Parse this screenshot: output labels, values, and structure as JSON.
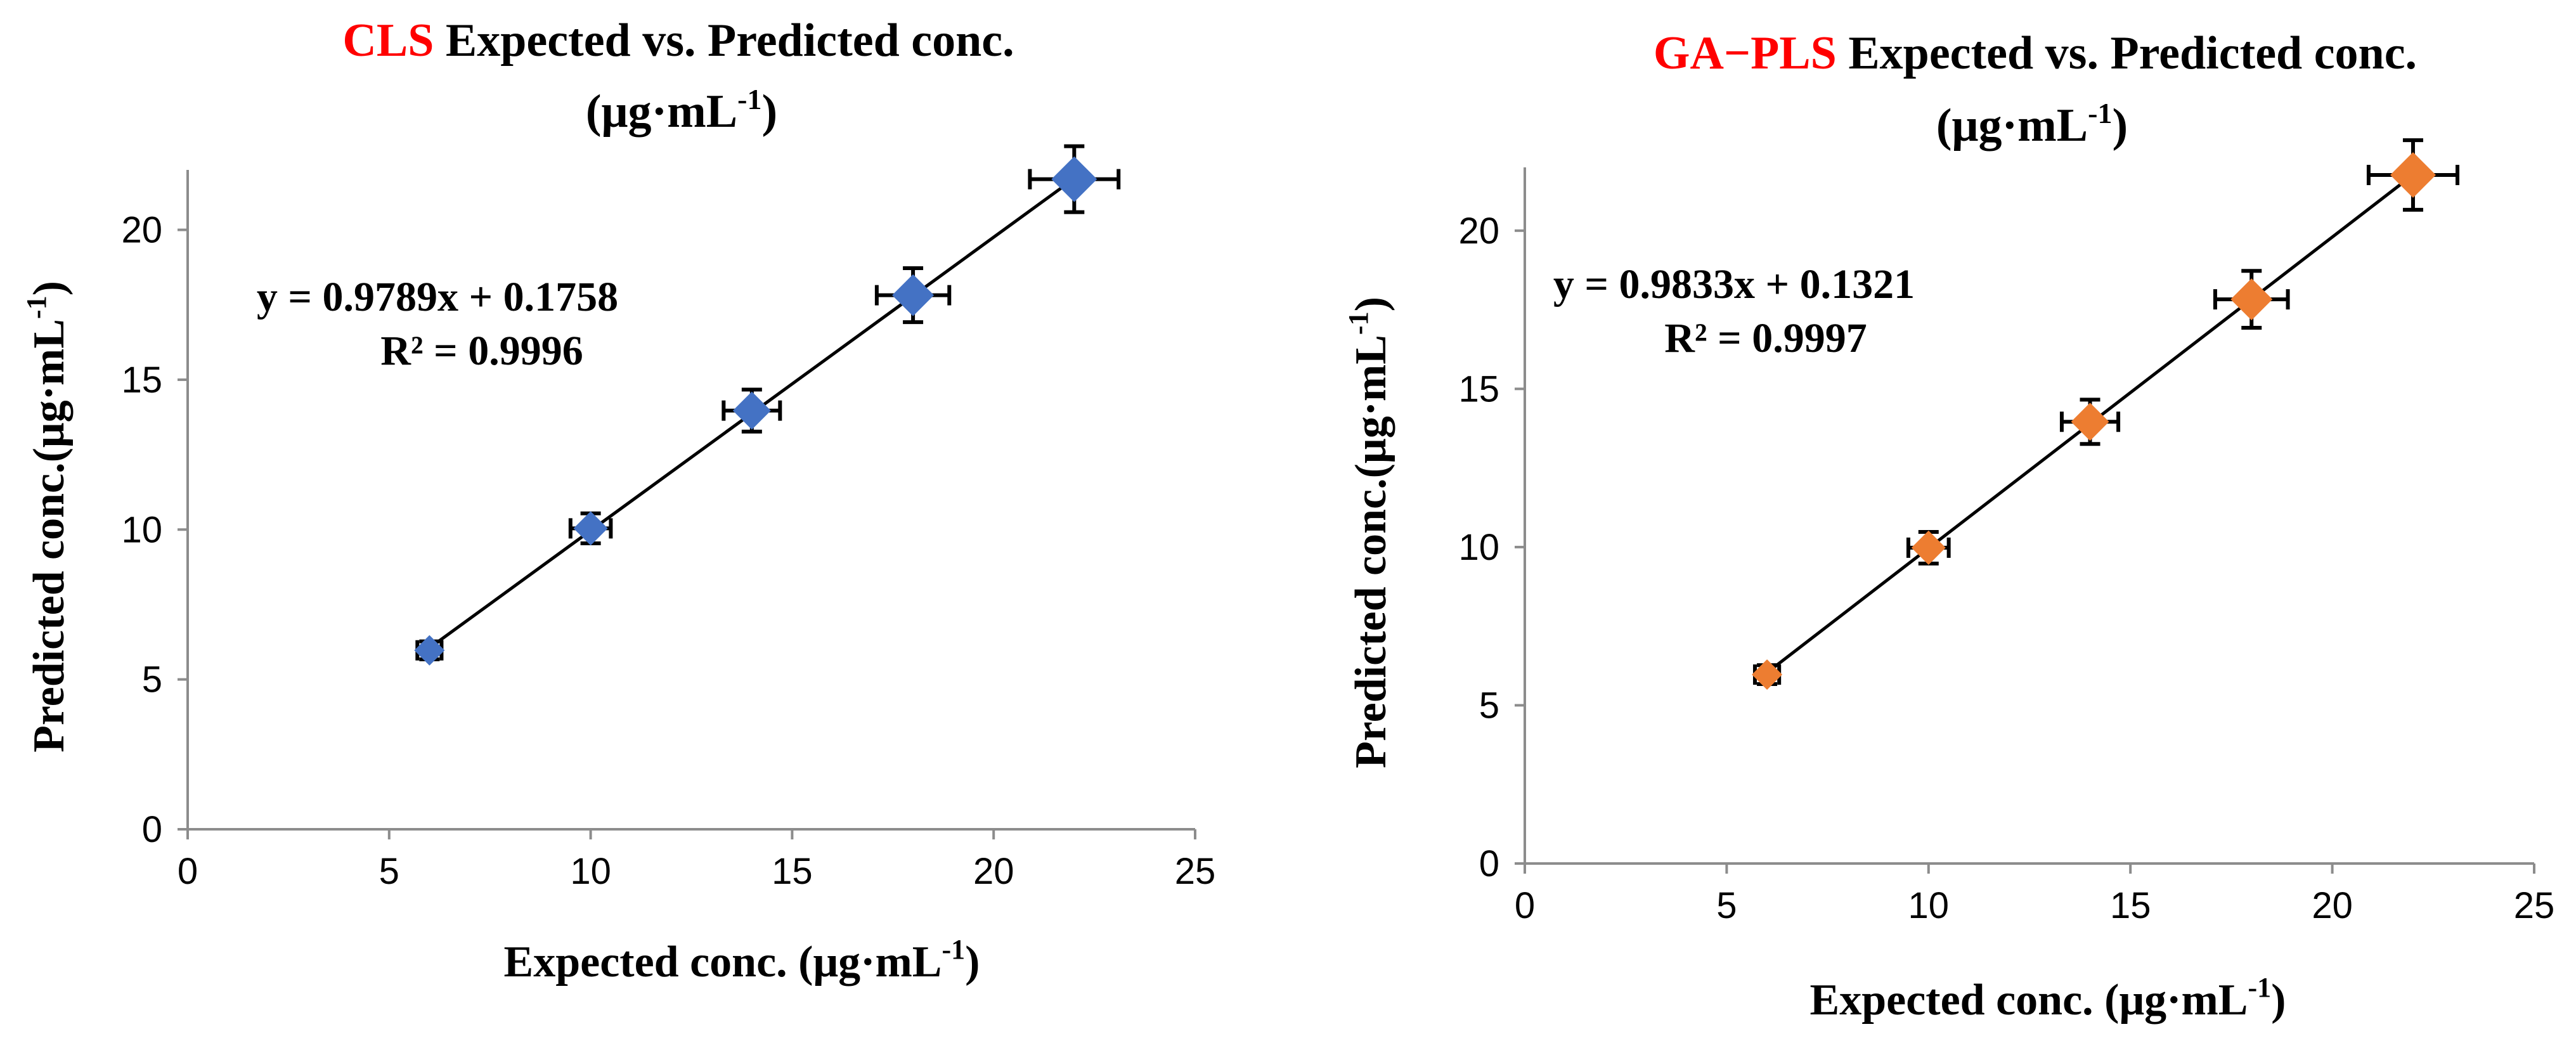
{
  "chart_data": [
    {
      "type": "scatter",
      "title_accent": "CLS",
      "title_rest": " Expected vs. Predicted conc.",
      "title_unit": "(μg·mL",
      "title_unit_sup": "-1",
      "title_unit_close": ")",
      "xlabel": "Expected conc. (μg·mL",
      "xlabel_sup": "-1",
      "xlabel_close": ")",
      "ylabel": "Predicted conc.(μg·mL",
      "ylabel_sup": "-1",
      "ylabel_close": ")",
      "xlim": [
        0,
        25
      ],
      "ylim": [
        0,
        22
      ],
      "xticks": [
        0,
        5,
        10,
        15,
        20,
        25
      ],
      "yticks": [
        0,
        5,
        10,
        15,
        20
      ],
      "x_tick_labels": [
        "0",
        "5",
        "10",
        "15",
        "20",
        "25"
      ],
      "y_tick_labels": [
        "0",
        "5",
        "10",
        "15",
        "20"
      ],
      "marker_color": "#4472c4",
      "series": [
        {
          "name": "CLS",
          "x": [
            6,
            10,
            14,
            18,
            22
          ],
          "y": [
            5.97,
            10.04,
            13.97,
            17.82,
            21.69
          ],
          "x_err": [
            0.3,
            0.5,
            0.7,
            0.9,
            1.1
          ],
          "y_err": [
            0.3,
            0.5,
            0.7,
            0.9,
            1.1
          ]
        }
      ],
      "trendline": {
        "slope": 0.9789,
        "intercept": 0.1758,
        "x_range": [
          6,
          22
        ]
      },
      "equation": "y = 0.9789x + 0.1758",
      "r_squared": "R² = 0.9996"
    },
    {
      "type": "scatter",
      "title_accent": "GA−PLS",
      "title_rest": " Expected vs. Predicted conc.",
      "title_unit": "(μg·mL",
      "title_unit_sup": "-1",
      "title_unit_close": ")",
      "xlabel": "Expected conc. (μg·mL",
      "xlabel_sup": "-1",
      "xlabel_close": ")",
      "ylabel": "Predicted conc.(μg·mL",
      "ylabel_sup": "-1",
      "ylabel_close": ")",
      "xlim": [
        0,
        25
      ],
      "ylim": [
        0,
        22
      ],
      "xticks": [
        0,
        5,
        10,
        15,
        20,
        25
      ],
      "yticks": [
        0,
        5,
        10,
        15,
        20
      ],
      "x_tick_labels": [
        "0",
        "5",
        "10",
        "15",
        "20",
        "25"
      ],
      "y_tick_labels": [
        "0",
        "5",
        "10",
        "15",
        "20"
      ],
      "marker_color": "#ed7d31",
      "series": [
        {
          "name": "GA-PLS",
          "x": [
            6,
            10,
            14,
            18,
            22
          ],
          "y": [
            5.97,
            9.98,
            13.96,
            17.83,
            21.76
          ],
          "x_err": [
            0.3,
            0.5,
            0.7,
            0.9,
            1.1
          ],
          "y_err": [
            0.3,
            0.5,
            0.7,
            0.9,
            1.1
          ]
        }
      ],
      "trendline": {
        "slope": 0.9833,
        "intercept": 0.1321,
        "x_range": [
          6,
          22
        ]
      },
      "equation": "y = 0.9833x + 0.1321",
      "r_squared": "R² = 0.9997"
    }
  ]
}
